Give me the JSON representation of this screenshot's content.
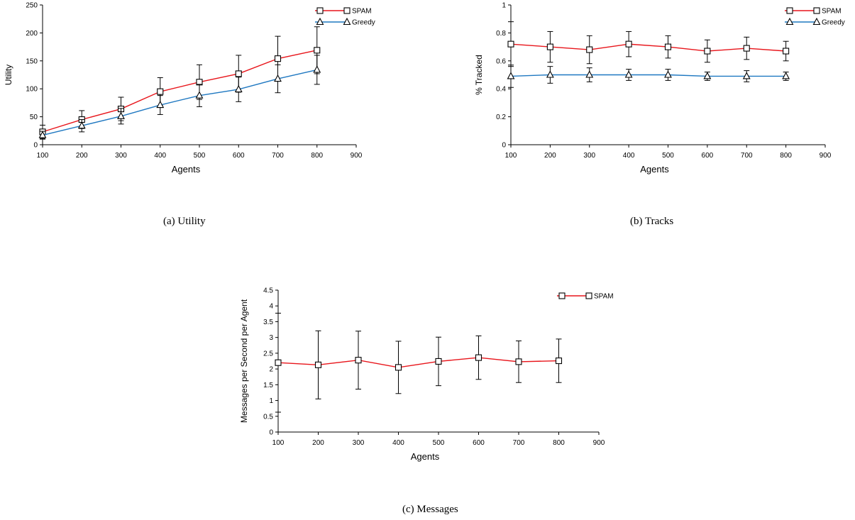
{
  "captions": {
    "a": "(a) Utility",
    "b": "(b) Tracks",
    "c": "(c) Messages"
  },
  "chart_data": [
    {
      "id": "utility",
      "type": "line",
      "xlabel": "Agents",
      "ylabel": "Utility",
      "xlim": [
        100,
        900
      ],
      "ylim": [
        0,
        250
      ],
      "xticks": [
        100,
        200,
        300,
        400,
        500,
        600,
        700,
        800,
        900
      ],
      "yticks": [
        0,
        50,
        100,
        150,
        200,
        250
      ],
      "x": [
        100,
        200,
        300,
        400,
        500,
        600,
        700,
        800
      ],
      "legend": "top-right",
      "series": [
        {
          "name": "SPAM",
          "color": "#e8151b",
          "marker": "square",
          "values": [
            23,
            45,
            64,
            95,
            112,
            127,
            154,
            169
          ],
          "err": [
            12,
            16,
            21,
            25,
            31,
            33,
            40,
            42
          ]
        },
        {
          "name": "Greedy",
          "color": "#1f78c1",
          "marker": "triangle",
          "values": [
            17,
            34,
            51,
            71,
            88,
            99,
            118,
            134
          ],
          "err": [
            7,
            11,
            14,
            17,
            20,
            22,
            25,
            26
          ]
        }
      ]
    },
    {
      "id": "tracks",
      "type": "line",
      "xlabel": "Agents",
      "ylabel": "% Tracked",
      "xlim": [
        100,
        900
      ],
      "ylim": [
        0,
        1
      ],
      "xticks": [
        100,
        200,
        300,
        400,
        500,
        600,
        700,
        800,
        900
      ],
      "yticks": [
        0,
        0.2,
        0.4,
        0.6,
        0.8,
        1
      ],
      "x": [
        100,
        200,
        300,
        400,
        500,
        600,
        700,
        800
      ],
      "legend": "top-right",
      "series": [
        {
          "name": "SPAM",
          "color": "#e8151b",
          "marker": "square",
          "values": [
            0.72,
            0.7,
            0.68,
            0.72,
            0.7,
            0.67,
            0.69,
            0.67
          ],
          "err": [
            0.16,
            0.11,
            0.1,
            0.09,
            0.08,
            0.08,
            0.08,
            0.07
          ]
        },
        {
          "name": "Greedy",
          "color": "#1f78c1",
          "marker": "triangle",
          "values": [
            0.49,
            0.5,
            0.5,
            0.5,
            0.5,
            0.49,
            0.49,
            0.49
          ],
          "err": [
            0.08,
            0.06,
            0.05,
            0.04,
            0.04,
            0.03,
            0.04,
            0.03
          ]
        }
      ]
    },
    {
      "id": "messages",
      "type": "line",
      "xlabel": "Agents",
      "ylabel": "Messages per Second per Agent",
      "xlim": [
        100,
        900
      ],
      "ylim": [
        0,
        4.5
      ],
      "xticks": [
        100,
        200,
        300,
        400,
        500,
        600,
        700,
        800,
        900
      ],
      "yticks": [
        0,
        0.5,
        1,
        1.5,
        2,
        2.5,
        3,
        3.5,
        4,
        4.5
      ],
      "x": [
        100,
        200,
        300,
        400,
        500,
        600,
        700,
        800
      ],
      "legend": "top-right",
      "series": [
        {
          "name": "SPAM",
          "color": "#e8151b",
          "marker": "square",
          "values": [
            2.2,
            2.13,
            2.28,
            2.05,
            2.24,
            2.36,
            2.23,
            2.26
          ],
          "err": [
            1.57,
            1.08,
            0.92,
            0.83,
            0.77,
            0.69,
            0.66,
            0.69
          ]
        }
      ]
    }
  ]
}
